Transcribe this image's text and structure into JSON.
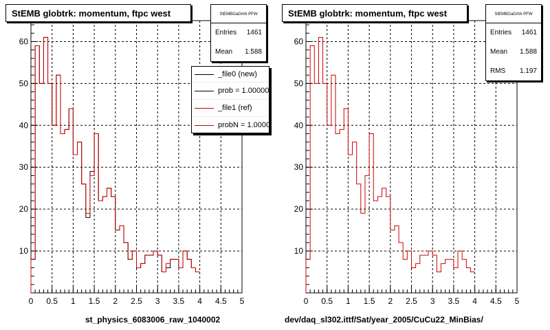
{
  "chart_data": [
    {
      "type": "bar",
      "title": "StEMB globtrk: momentum, ftpc west",
      "xlabel": "st_physics_6083006_raw_1040002",
      "xlim": [
        0,
        5
      ],
      "ylim": [
        0,
        65
      ],
      "xticks": [
        "0",
        "0.5",
        "1",
        "1.5",
        "2",
        "2.5",
        "3",
        "3.5",
        "4",
        "4.5",
        "5"
      ],
      "yticks": [
        "10",
        "20",
        "30",
        "40",
        "50",
        "60"
      ],
      "grid": true,
      "bin_width": 0.1,
      "series": [
        {
          "name": "_file0 (new)",
          "color": "#000000",
          "values": [
            8,
            59,
            50,
            61,
            50,
            40,
            52,
            38,
            39,
            44,
            33,
            36,
            26,
            18,
            29,
            38,
            22,
            23,
            25,
            23,
            15,
            16,
            12,
            8,
            10,
            6,
            7,
            9,
            9,
            10,
            9,
            5,
            6,
            8,
            8,
            6,
            10,
            8,
            6,
            5
          ]
        },
        {
          "name": "_file1 (ref)",
          "color": "#cc0000",
          "values": [
            8,
            59,
            50,
            61,
            50,
            40,
            52,
            38,
            39,
            44,
            33,
            36,
            26,
            19,
            28,
            38,
            22,
            23,
            25,
            23,
            15,
            16,
            12,
            8,
            10,
            6,
            7,
            9,
            9,
            10,
            9,
            5,
            7,
            8,
            8,
            6,
            10,
            8,
            6,
            5
          ]
        }
      ],
      "stats": {
        "name": "StEMBGaGrtrk PFW",
        "entries_label": "Entries",
        "entries": "1461",
        "mean_label": "Mean",
        "mean": "1.588"
      },
      "legend": {
        "position": "top-right",
        "entries": [
          {
            "label": "_file0 (new)",
            "color": "#000000"
          },
          {
            "label": "prob = 1.000000",
            "color": "#000000"
          },
          {
            "label": "_file1 (ref)",
            "color": "#cc0000"
          },
          {
            "label": "probN = 1.000000",
            "color": "#cc0000"
          }
        ]
      }
    },
    {
      "type": "bar",
      "title": "StEMB globtrk: momentum, ftpc west",
      "xlabel": "dev/daq_sl302.ittf/Sat/year_2005/CuCu22_MinBias/",
      "xlim": [
        0,
        5
      ],
      "ylim": [
        0,
        65
      ],
      "xticks": [
        "0",
        "0.5",
        "1",
        "1.5",
        "2",
        "2.5",
        "3",
        "3.5",
        "4",
        "4.5",
        "5"
      ],
      "yticks": [
        "10",
        "20",
        "30",
        "40",
        "50",
        "60"
      ],
      "grid": true,
      "bin_width": 0.1,
      "series": [
        {
          "color": "#cc0000",
          "values": [
            8,
            59,
            50,
            61,
            50,
            40,
            52,
            38,
            39,
            44,
            33,
            36,
            26,
            19,
            28,
            38,
            22,
            23,
            25,
            23,
            15,
            16,
            12,
            8,
            10,
            6,
            7,
            9,
            9,
            10,
            9,
            5,
            7,
            8,
            8,
            6,
            10,
            8,
            6,
            5
          ]
        }
      ],
      "stats": {
        "name": "StEMBGaGrtrk PFW",
        "entries_label": "Entries",
        "entries": "1461",
        "mean_label": "Mean",
        "mean": "1.588",
        "rms_label": "RMS",
        "rms": "1.197"
      }
    }
  ]
}
